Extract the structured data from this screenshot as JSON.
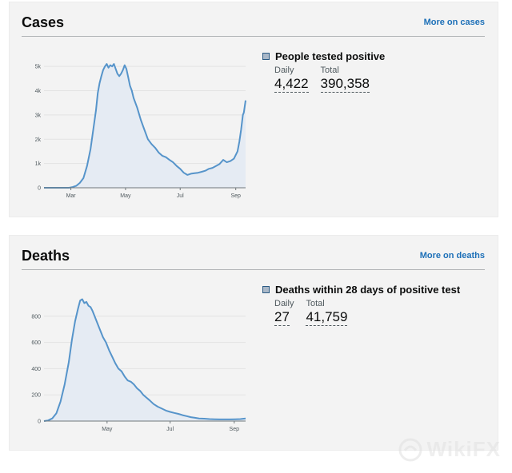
{
  "cards": [
    {
      "title": "Cases",
      "more_link": "More on cases",
      "metric_title": "People tested positive",
      "daily_label": "Daily",
      "daily_value": "4,422",
      "total_label": "Total",
      "total_value": "390,358",
      "accent_color": "#5694ca",
      "fill_color": "#e5ebf3",
      "chart_data": {
        "type": "area",
        "xlabel": "",
        "ylabel": "",
        "x_ticks": [
          {
            "label": "Mar",
            "day": 30
          },
          {
            "label": "May",
            "day": 91
          },
          {
            "label": "Jul",
            "day": 152
          },
          {
            "label": "Sep",
            "day": 214
          }
        ],
        "y_ticks": [
          {
            "label": "0",
            "value": 0
          },
          {
            "label": "1k",
            "value": 1000
          },
          {
            "label": "2k",
            "value": 2000
          },
          {
            "label": "3k",
            "value": 3000
          },
          {
            "label": "4k",
            "value": 4000
          },
          {
            "label": "5k",
            "value": 5000
          }
        ],
        "ylim": [
          0,
          5400
        ],
        "xlim": [
          0,
          225
        ],
        "grid": true,
        "series": [
          {
            "points": [
              [
                0,
                0
              ],
              [
                20,
                0
              ],
              [
                28,
                0
              ],
              [
                32,
                30
              ],
              [
                36,
                80
              ],
              [
                40,
                200
              ],
              [
                44,
                400
              ],
              [
                48,
                900
              ],
              [
                52,
                1600
              ],
              [
                55,
                2400
              ],
              [
                58,
                3200
              ],
              [
                60,
                3900
              ],
              [
                62,
                4300
              ],
              [
                64,
                4600
              ],
              [
                66,
                4850
              ],
              [
                68,
                5000
              ],
              [
                70,
                5100
              ],
              [
                72,
                4950
              ],
              [
                74,
                5050
              ],
              [
                76,
                5000
              ],
              [
                78,
                5100
              ],
              [
                80,
                4900
              ],
              [
                82,
                4700
              ],
              [
                84,
                4600
              ],
              [
                86,
                4700
              ],
              [
                88,
                4850
              ],
              [
                90,
                5050
              ],
              [
                92,
                4900
              ],
              [
                94,
                4550
              ],
              [
                96,
                4200
              ],
              [
                98,
                4000
              ],
              [
                100,
                3700
              ],
              [
                104,
                3300
              ],
              [
                108,
                2800
              ],
              [
                112,
                2400
              ],
              [
                116,
                2000
              ],
              [
                120,
                1800
              ],
              [
                124,
                1650
              ],
              [
                128,
                1450
              ],
              [
                132,
                1320
              ],
              [
                136,
                1260
              ],
              [
                140,
                1150
              ],
              [
                144,
                1050
              ],
              [
                148,
                900
              ],
              [
                152,
                780
              ],
              [
                156,
                620
              ],
              [
                160,
                530
              ],
              [
                164,
                580
              ],
              [
                168,
                600
              ],
              [
                172,
                620
              ],
              [
                176,
                660
              ],
              [
                180,
                700
              ],
              [
                184,
                780
              ],
              [
                188,
                820
              ],
              [
                192,
                900
              ],
              [
                196,
                980
              ],
              [
                200,
                1150
              ],
              [
                204,
                1050
              ],
              [
                208,
                1100
              ],
              [
                212,
                1200
              ],
              [
                216,
                1500
              ],
              [
                218,
                1900
              ],
              [
                220,
                2400
              ],
              [
                222,
                3000
              ],
              [
                223,
                3100
              ],
              [
                225,
                3600
              ]
            ]
          }
        ]
      }
    },
    {
      "title": "Deaths",
      "more_link": "More on deaths",
      "metric_title": "Deaths within 28 days of positive test",
      "daily_label": "Daily",
      "daily_value": "27",
      "total_label": "Total",
      "total_value": "41,759",
      "accent_color": "#5694ca",
      "fill_color": "#e5ebf3",
      "chart_data": {
        "type": "area",
        "xlabel": "",
        "ylabel": "",
        "x_ticks": [
          {
            "label": "May",
            "day": 61
          },
          {
            "label": "Jul",
            "day": 122
          },
          {
            "label": "Sep",
            "day": 184
          }
        ],
        "y_ticks": [
          {
            "label": "0",
            "value": 0
          },
          {
            "label": "200",
            "value": 200
          },
          {
            "label": "400",
            "value": 400
          },
          {
            "label": "600",
            "value": 600
          },
          {
            "label": "800",
            "value": 800
          }
        ],
        "ylim": [
          0,
          1000
        ],
        "xlim": [
          0,
          195
        ],
        "grid": true,
        "series": [
          {
            "points": [
              [
                0,
                0
              ],
              [
                4,
                5
              ],
              [
                8,
                20
              ],
              [
                12,
                60
              ],
              [
                16,
                150
              ],
              [
                20,
                280
              ],
              [
                24,
                450
              ],
              [
                27,
                620
              ],
              [
                30,
                760
              ],
              [
                33,
                860
              ],
              [
                35,
                920
              ],
              [
                37,
                930
              ],
              [
                39,
                900
              ],
              [
                41,
                910
              ],
              [
                43,
                880
              ],
              [
                45,
                870
              ],
              [
                47,
                840
              ],
              [
                49,
                800
              ],
              [
                51,
                760
              ],
              [
                54,
                700
              ],
              [
                57,
                640
              ],
              [
                60,
                600
              ],
              [
                63,
                540
              ],
              [
                66,
                490
              ],
              [
                69,
                440
              ],
              [
                72,
                400
              ],
              [
                75,
                380
              ],
              [
                78,
                340
              ],
              [
                81,
                310
              ],
              [
                84,
                300
              ],
              [
                87,
                280
              ],
              [
                90,
                250
              ],
              [
                93,
                230
              ],
              [
                96,
                200
              ],
              [
                99,
                180
              ],
              [
                102,
                160
              ],
              [
                106,
                130
              ],
              [
                110,
                110
              ],
              [
                114,
                95
              ],
              [
                118,
                80
              ],
              [
                122,
                70
              ],
              [
                126,
                62
              ],
              [
                130,
                55
              ],
              [
                134,
                45
              ],
              [
                138,
                38
              ],
              [
                142,
                30
              ],
              [
                146,
                25
              ],
              [
                150,
                20
              ],
              [
                155,
                18
              ],
              [
                160,
                15
              ],
              [
                165,
                14
              ],
              [
                170,
                13
              ],
              [
                175,
                13
              ],
              [
                180,
                13
              ],
              [
                185,
                14
              ],
              [
                190,
                15
              ],
              [
                195,
                20
              ]
            ]
          }
        ]
      }
    }
  ],
  "watermark": "WikiFX"
}
